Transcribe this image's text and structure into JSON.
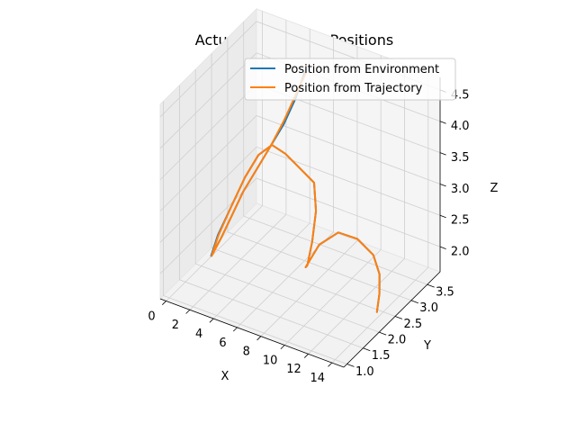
{
  "chart_data": {
    "type": "line",
    "projection": "3d",
    "title": "Actual v/s Desired Positions",
    "xlabel": "X",
    "ylabel": "Y",
    "zlabel": "Z",
    "xlim": [
      -0.5,
      15
    ],
    "ylim": [
      0.9,
      3.9
    ],
    "zlim": [
      1.6,
      4.7
    ],
    "xticks": [
      "0",
      "2",
      "4",
      "6",
      "8",
      "10",
      "12",
      "14"
    ],
    "yticks": [
      "1.0",
      "1.5",
      "2.0",
      "2.5",
      "3.0",
      "3.5"
    ],
    "zticks": [
      "2.0",
      "2.5",
      "3.0",
      "3.5",
      "4.0",
      "4.5"
    ],
    "grid": true,
    "legend_position": "top-right",
    "series": [
      {
        "name": "Position from Environment",
        "color": "#1f77b4",
        "points": [
          [
            6.0,
            3.0,
            4.6
          ],
          [
            5.5,
            2.9,
            4.2
          ],
          [
            4.8,
            2.8,
            3.8
          ],
          [
            4.2,
            2.6,
            3.5
          ],
          [
            3.6,
            2.4,
            3.2
          ],
          [
            3.0,
            2.2,
            2.9
          ],
          [
            2.6,
            2.0,
            2.6
          ],
          [
            2.2,
            1.8,
            2.3
          ],
          [
            1.9,
            1.6,
            2.1
          ],
          [
            2.2,
            1.7,
            2.4
          ],
          [
            2.8,
            1.9,
            2.8
          ],
          [
            3.4,
            2.1,
            3.2
          ],
          [
            4.0,
            2.3,
            3.5
          ],
          [
            4.6,
            2.5,
            3.6
          ],
          [
            5.2,
            2.7,
            3.4
          ],
          [
            6.0,
            2.9,
            3.1
          ],
          [
            6.8,
            3.0,
            2.9
          ],
          [
            7.5,
            2.8,
            2.6
          ],
          [
            8.0,
            2.5,
            2.3
          ],
          [
            8.4,
            2.2,
            2.1
          ],
          [
            8.8,
            2.0,
            2.2
          ],
          [
            9.4,
            2.2,
            2.5
          ],
          [
            10.2,
            2.5,
            2.6
          ],
          [
            11.0,
            2.8,
            2.4
          ],
          [
            11.8,
            3.0,
            2.1
          ],
          [
            12.6,
            2.9,
            1.9
          ],
          [
            13.4,
            2.6,
            1.8
          ],
          [
            14.0,
            2.3,
            1.7
          ]
        ]
      },
      {
        "name": "Position from Trajectory",
        "color": "#ff7f0e",
        "points": [
          [
            6.1,
            3.0,
            4.6
          ],
          [
            5.5,
            2.9,
            4.25
          ],
          [
            4.8,
            2.8,
            3.85
          ],
          [
            4.2,
            2.6,
            3.5
          ],
          [
            3.6,
            2.4,
            3.2
          ],
          [
            3.0,
            2.2,
            2.9
          ],
          [
            2.6,
            2.0,
            2.6
          ],
          [
            2.2,
            1.8,
            2.3
          ],
          [
            1.95,
            1.6,
            2.1
          ],
          [
            2.25,
            1.7,
            2.4
          ],
          [
            2.8,
            1.9,
            2.8
          ],
          [
            3.4,
            2.1,
            3.2
          ],
          [
            4.0,
            2.3,
            3.5
          ],
          [
            4.6,
            2.5,
            3.6
          ],
          [
            5.2,
            2.7,
            3.4
          ],
          [
            6.0,
            2.9,
            3.1
          ],
          [
            6.8,
            3.0,
            2.9
          ],
          [
            7.5,
            2.8,
            2.6
          ],
          [
            8.0,
            2.5,
            2.3
          ],
          [
            8.4,
            2.2,
            2.1
          ],
          [
            8.8,
            2.0,
            2.2
          ],
          [
            9.4,
            2.2,
            2.5
          ],
          [
            10.2,
            2.5,
            2.6
          ],
          [
            11.0,
            2.8,
            2.4
          ],
          [
            11.8,
            3.0,
            2.1
          ],
          [
            12.6,
            2.9,
            1.9
          ],
          [
            13.4,
            2.6,
            1.8
          ],
          [
            14.0,
            2.3,
            1.7
          ]
        ]
      }
    ]
  }
}
